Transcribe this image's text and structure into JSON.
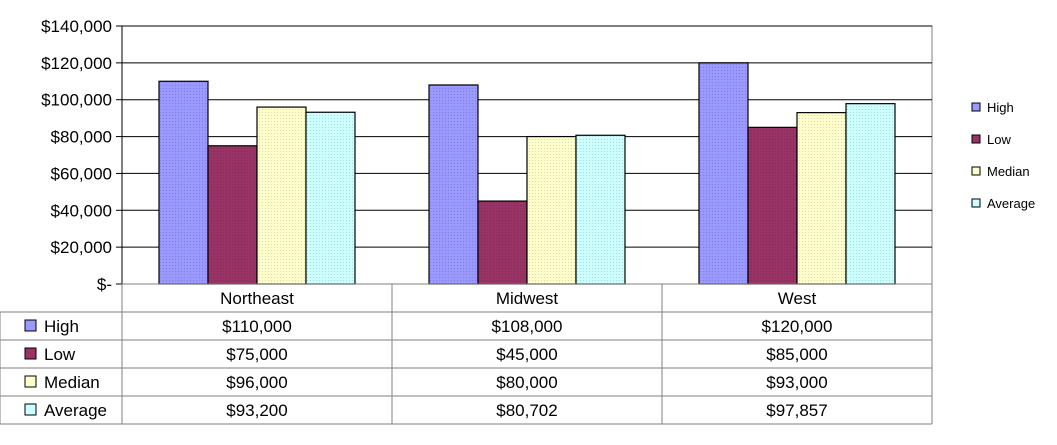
{
  "chart_data": {
    "type": "bar",
    "title": "",
    "xlabel": "",
    "ylabel": "",
    "categories": [
      "Northeast",
      "Midwest",
      "West"
    ],
    "series": [
      {
        "name": "High",
        "values": [
          110000,
          108000,
          120000
        ],
        "color": "#9999ff"
      },
      {
        "name": "Low",
        "values": [
          75000,
          45000,
          85000
        ],
        "color": "#993366"
      },
      {
        "name": "Median",
        "values": [
          96000,
          80000,
          93000
        ],
        "color": "#ffffcc"
      },
      {
        "name": "Average",
        "values": [
          93200,
          80702,
          97857
        ],
        "color": "#ccffff"
      }
    ],
    "ylim": [
      0,
      140000
    ],
    "ytick_step": 20000,
    "ytick_labels": [
      "$-",
      "$20,000",
      "$40,000",
      "$60,000",
      "$80,000",
      "$100,000",
      "$120,000",
      "$140,000"
    ],
    "grid": true,
    "legend": "right",
    "data_table": {
      "rows": [
        {
          "label": "High",
          "cells": [
            "$110,000",
            "$108,000",
            "$120,000"
          ]
        },
        {
          "label": "Low",
          "cells": [
            "$75,000",
            "$45,000",
            "$85,000"
          ]
        },
        {
          "label": "Median",
          "cells": [
            "$96,000",
            "$80,000",
            "$93,000"
          ]
        },
        {
          "label": "Average",
          "cells": [
            "$93,200",
            "$80,702",
            "$97,857"
          ]
        }
      ]
    }
  }
}
